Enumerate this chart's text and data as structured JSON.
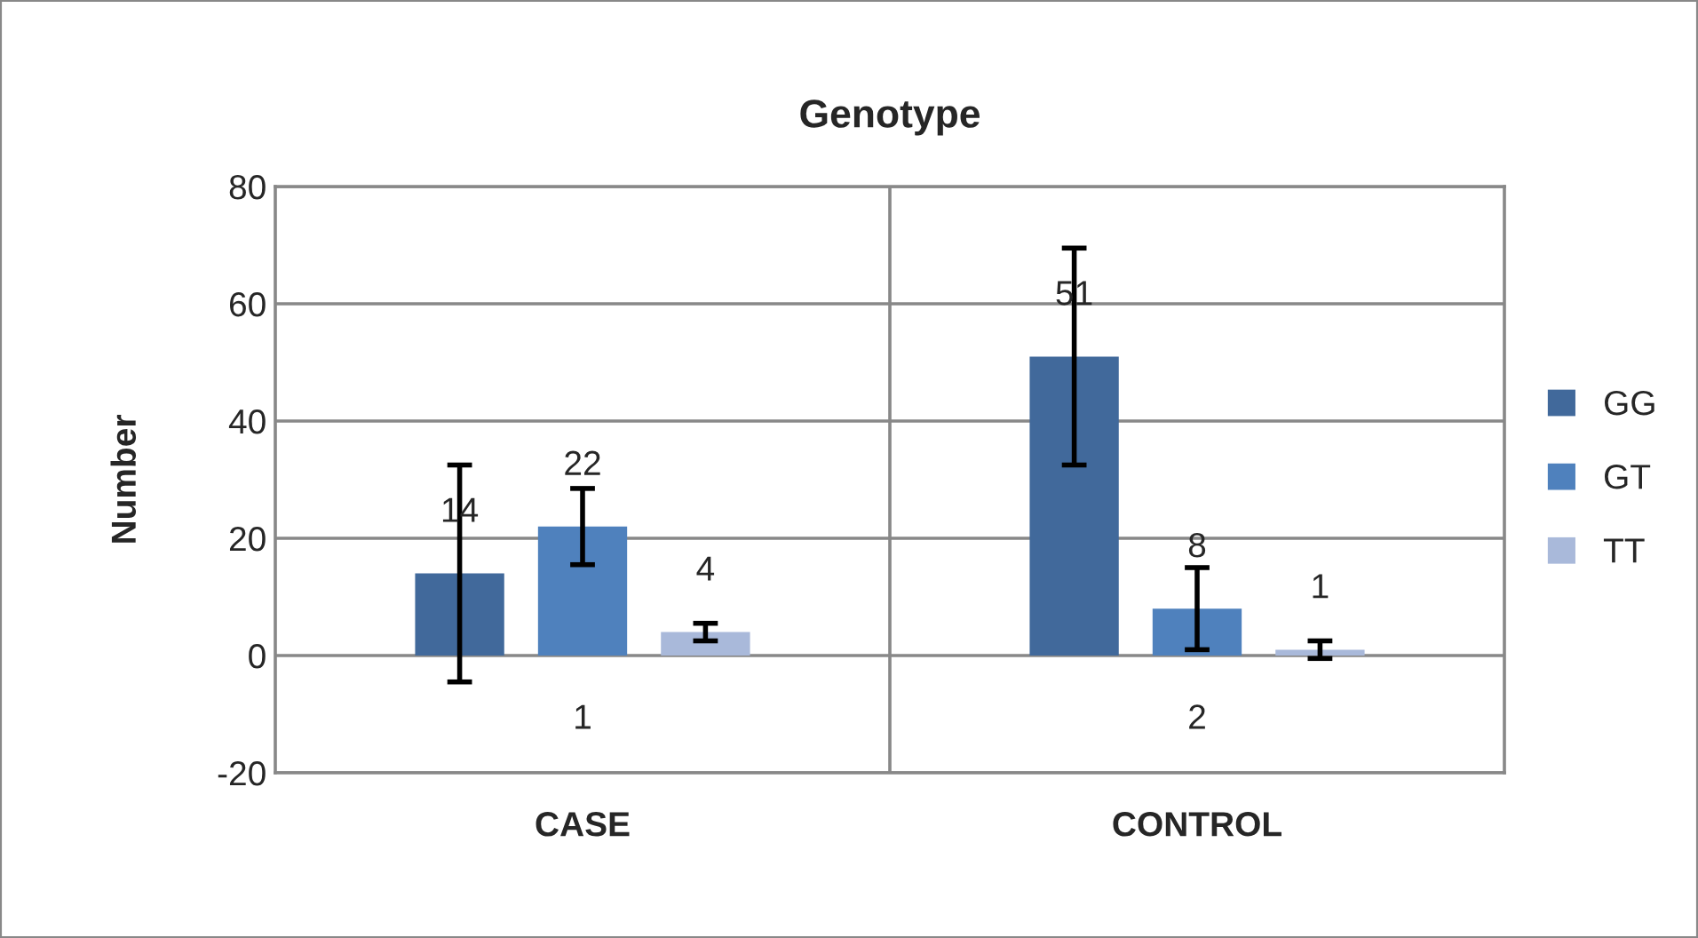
{
  "chart_data": {
    "type": "bar",
    "title": "Genotype",
    "ylabel": "Number",
    "categories": [
      "1",
      "2"
    ],
    "series": [
      {
        "name": "GG",
        "color": "#41699b",
        "values": [
          14,
          51
        ],
        "errors": [
          18.5,
          18.5
        ]
      },
      {
        "name": "GT",
        "color": "#4f81bd",
        "values": [
          22,
          8
        ],
        "errors": [
          6.5,
          7
        ]
      },
      {
        "name": "TT",
        "color": "#a9b9da",
        "values": [
          4,
          1
        ],
        "errors": [
          1.5,
          1.5
        ]
      }
    ],
    "annotations": [
      "CASE",
      "CONTROL"
    ],
    "ylim": [
      -20,
      80
    ],
    "yticks": [
      -20,
      0,
      20,
      40,
      60,
      80
    ],
    "grid": true,
    "legend": "right",
    "data_labels": true
  }
}
